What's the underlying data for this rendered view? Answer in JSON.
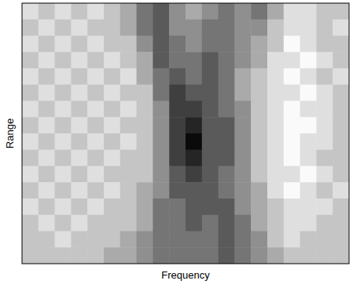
{
  "chart_data": {
    "type": "heatmap",
    "x_label": "Frequency",
    "y_label": "Range",
    "tick_labels": false,
    "values": [
      [
        0.2,
        0.3,
        0.2,
        0.3,
        0.2,
        0.3,
        0.4,
        0.6,
        0.7,
        0.5,
        0.4,
        0.5,
        0.6,
        0.5,
        0.6,
        0.4,
        0.2,
        0.2,
        0.3,
        0.3
      ],
      [
        0.3,
        0.2,
        0.3,
        0.2,
        0.3,
        0.3,
        0.4,
        0.6,
        0.7,
        0.5,
        0.5,
        0.6,
        0.6,
        0.5,
        0.5,
        0.3,
        0.2,
        0.2,
        0.3,
        0.2
      ],
      [
        0.2,
        0.3,
        0.2,
        0.3,
        0.2,
        0.3,
        0.3,
        0.5,
        0.7,
        0.6,
        0.5,
        0.6,
        0.6,
        0.5,
        0.4,
        0.3,
        0.1,
        0.2,
        0.3,
        0.3
      ],
      [
        0.3,
        0.2,
        0.3,
        0.2,
        0.3,
        0.2,
        0.3,
        0.4,
        0.7,
        0.6,
        0.6,
        0.7,
        0.6,
        0.5,
        0.4,
        0.2,
        0.2,
        0.1,
        0.2,
        0.3
      ],
      [
        0.2,
        0.3,
        0.2,
        0.3,
        0.2,
        0.3,
        0.2,
        0.4,
        0.6,
        0.7,
        0.6,
        0.7,
        0.6,
        0.4,
        0.3,
        0.2,
        0.1,
        0.2,
        0.3,
        0.2
      ],
      [
        0.3,
        0.2,
        0.3,
        0.2,
        0.3,
        0.2,
        0.3,
        0.3,
        0.6,
        0.8,
        0.7,
        0.7,
        0.6,
        0.4,
        0.3,
        0.2,
        0.2,
        0.1,
        0.2,
        0.3
      ],
      [
        0.2,
        0.3,
        0.2,
        0.3,
        0.2,
        0.3,
        0.2,
        0.3,
        0.5,
        0.8,
        0.8,
        0.7,
        0.6,
        0.5,
        0.3,
        0.2,
        0.1,
        0.2,
        0.2,
        0.3
      ],
      [
        0.3,
        0.2,
        0.3,
        0.2,
        0.3,
        0.2,
        0.3,
        0.3,
        0.5,
        0.8,
        0.9,
        0.7,
        0.7,
        0.5,
        0.3,
        0.2,
        0.1,
        0.1,
        0.2,
        0.3
      ],
      [
        0.2,
        0.3,
        0.2,
        0.3,
        0.2,
        0.3,
        0.2,
        0.3,
        0.5,
        0.8,
        1.0,
        0.7,
        0.7,
        0.5,
        0.3,
        0.2,
        0.1,
        0.2,
        0.2,
        0.3
      ],
      [
        0.3,
        0.2,
        0.3,
        0.2,
        0.3,
        0.2,
        0.3,
        0.3,
        0.5,
        0.8,
        0.9,
        0.7,
        0.7,
        0.5,
        0.3,
        0.2,
        0.1,
        0.2,
        0.3,
        0.3
      ],
      [
        0.2,
        0.3,
        0.2,
        0.3,
        0.2,
        0.3,
        0.3,
        0.3,
        0.5,
        0.7,
        0.8,
        0.7,
        0.6,
        0.5,
        0.3,
        0.2,
        0.2,
        0.1,
        0.2,
        0.3
      ],
      [
        0.3,
        0.2,
        0.3,
        0.2,
        0.3,
        0.2,
        0.3,
        0.4,
        0.5,
        0.7,
        0.7,
        0.7,
        0.6,
        0.5,
        0.4,
        0.2,
        0.1,
        0.2,
        0.3,
        0.2
      ],
      [
        0.2,
        0.3,
        0.2,
        0.3,
        0.2,
        0.3,
        0.3,
        0.4,
        0.6,
        0.6,
        0.7,
        0.7,
        0.7,
        0.5,
        0.4,
        0.3,
        0.2,
        0.2,
        0.2,
        0.3
      ],
      [
        0.3,
        0.2,
        0.3,
        0.2,
        0.3,
        0.3,
        0.3,
        0.4,
        0.6,
        0.6,
        0.7,
        0.6,
        0.7,
        0.6,
        0.4,
        0.3,
        0.2,
        0.2,
        0.3,
        0.3
      ],
      [
        0.3,
        0.3,
        0.2,
        0.3,
        0.3,
        0.3,
        0.4,
        0.5,
        0.6,
        0.6,
        0.6,
        0.6,
        0.7,
        0.6,
        0.5,
        0.3,
        0.2,
        0.3,
        0.3,
        0.3
      ],
      [
        0.3,
        0.3,
        0.3,
        0.3,
        0.3,
        0.4,
        0.4,
        0.5,
        0.6,
        0.6,
        0.6,
        0.6,
        0.7,
        0.6,
        0.5,
        0.4,
        0.3,
        0.3,
        0.3,
        0.3
      ]
    ]
  }
}
